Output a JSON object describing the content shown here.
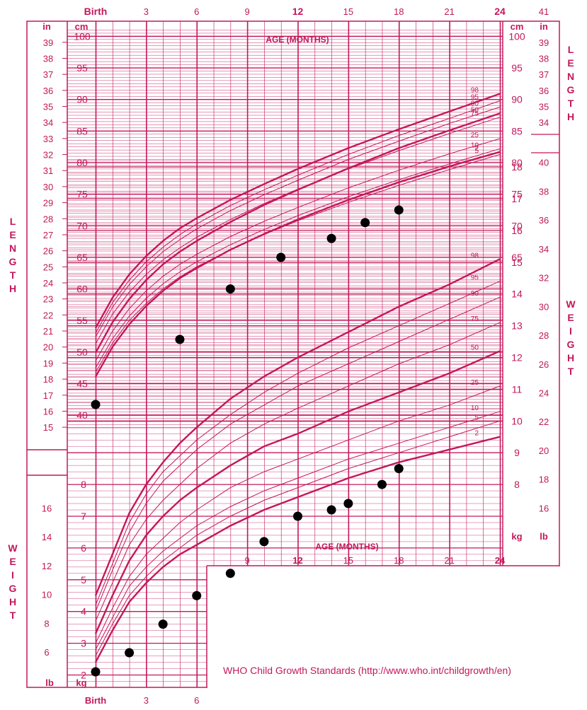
{
  "credit": "WHO Child Growth Standards (http://www.who.int/childgrowth/en)",
  "colors": {
    "ink": "#c2185b",
    "dot": "#000000"
  },
  "chart_data": {
    "type": "line",
    "title": "",
    "x_label_top": "AGE (MONTHS)",
    "x_label_mid": "AGE (MONTHS)",
    "x_ticks_top": [
      "Birth",
      "3",
      "6",
      "9",
      "12",
      "15",
      "18",
      "21",
      "24"
    ],
    "x_ticks_mid": [
      "9",
      "12",
      "15",
      "18",
      "21",
      "24"
    ],
    "x_ticks_bottom": [
      "Birth",
      "3",
      "6"
    ],
    "length_axis": {
      "label": "LENGTH",
      "cm_unit": "cm",
      "in_unit": "in",
      "cm_ticks": [
        40,
        45,
        50,
        55,
        60,
        65,
        70,
        75,
        80,
        85,
        90,
        95,
        100
      ],
      "in_ticks": [
        15,
        16,
        17,
        18,
        19,
        20,
        21,
        22,
        23,
        24,
        25,
        26,
        27,
        28,
        29,
        30,
        31,
        32,
        33,
        34,
        35,
        36,
        37,
        38,
        39
      ],
      "right_cm_ticks": [
        90,
        95,
        100
      ],
      "right_in_ticks": [
        34,
        35,
        36,
        37,
        38,
        39
      ],
      "right_in_top": "41",
      "ylim_cm": [
        38,
        104
      ]
    },
    "weight_axis": {
      "label": "WEIGHT",
      "kg_unit": "kg",
      "lb_unit": "lb",
      "kg_ticks": [
        2,
        3,
        4,
        5,
        6,
        7,
        8,
        9,
        10,
        11,
        12,
        13,
        14,
        15,
        16,
        17,
        18
      ],
      "lb_ticks": [
        6,
        8,
        10,
        12,
        14,
        16,
        18,
        20,
        22,
        24,
        26,
        28,
        30,
        32,
        34,
        36,
        38,
        40
      ],
      "ylim_kg": [
        1.8,
        18.6
      ]
    },
    "length_series": [
      {
        "name": "98",
        "x": [
          0,
          1,
          2,
          3,
          4,
          5,
          6,
          8,
          10,
          12,
          15,
          18,
          21,
          24
        ],
        "y": [
          53.8,
          58.6,
          62.3,
          65.2,
          67.6,
          69.6,
          71.2,
          74.1,
          76.6,
          79.0,
          82.3,
          85.3,
          88.1,
          90.9
        ]
      },
      {
        "name": "95",
        "x": [
          0,
          1,
          2,
          3,
          4,
          5,
          6,
          8,
          10,
          12,
          15,
          18,
          21,
          24
        ],
        "y": [
          53.0,
          57.8,
          61.4,
          64.3,
          66.6,
          68.6,
          70.3,
          73.2,
          75.7,
          78.0,
          81.3,
          84.3,
          87.0,
          89.8
        ]
      },
      {
        "name": "90",
        "x": [
          0,
          1,
          2,
          3,
          4,
          5,
          6,
          8,
          10,
          12,
          15,
          18,
          21,
          24
        ],
        "y": [
          52.4,
          57.1,
          60.7,
          63.5,
          65.9,
          67.8,
          69.5,
          72.4,
          74.9,
          77.2,
          80.5,
          83.4,
          86.2,
          88.8
        ]
      },
      {
        "name": "75",
        "x": [
          0,
          1,
          2,
          3,
          4,
          5,
          6,
          8,
          10,
          12,
          15,
          18,
          21,
          24
        ],
        "y": [
          51.3,
          56.0,
          59.5,
          62.3,
          64.6,
          66.5,
          68.2,
          71.0,
          73.5,
          75.8,
          79.0,
          81.9,
          84.6,
          87.2
        ]
      },
      {
        "name": "50",
        "x": [
          0,
          1,
          2,
          3,
          4,
          5,
          6,
          8,
          10,
          12,
          15,
          18,
          21,
          24
        ],
        "y": [
          49.9,
          54.7,
          58.4,
          61.4,
          63.9,
          65.9,
          67.6,
          70.6,
          73.3,
          75.7,
          79.1,
          82.3,
          85.1,
          87.8
        ]
      },
      {
        "name": "25",
        "x": [
          0,
          1,
          2,
          3,
          4,
          5,
          6,
          8,
          10,
          12,
          15,
          18,
          21,
          24
        ],
        "y": [
          48.6,
          53.3,
          56.9,
          59.7,
          62.0,
          63.9,
          65.5,
          68.3,
          70.7,
          72.9,
          76.0,
          78.8,
          81.4,
          83.8
        ]
      },
      {
        "name": "10",
        "x": [
          0,
          1,
          2,
          3,
          4,
          5,
          6,
          8,
          10,
          12,
          15,
          18,
          21,
          24
        ],
        "y": [
          47.5,
          52.1,
          55.7,
          58.5,
          60.8,
          62.7,
          64.3,
          67.0,
          69.4,
          71.6,
          74.6,
          77.3,
          79.8,
          82.2
        ]
      },
      {
        "name": "5",
        "x": [
          0,
          1,
          2,
          3,
          4,
          5,
          6,
          8,
          10,
          12,
          15,
          18,
          21,
          24
        ],
        "y": [
          46.8,
          51.4,
          55.0,
          57.7,
          60.0,
          61.9,
          63.5,
          66.2,
          68.6,
          70.8,
          73.7,
          76.4,
          78.9,
          81.3
        ]
      },
      {
        "name": "2",
        "x": [
          0,
          1,
          2,
          3,
          4,
          5,
          6,
          8,
          10,
          12,
          15,
          18,
          21,
          24
        ],
        "y": [
          46.1,
          50.8,
          54.4,
          57.3,
          59.7,
          61.7,
          63.3,
          66.2,
          68.7,
          71.0,
          74.1,
          76.9,
          79.4,
          81.7
        ]
      }
    ],
    "weight_series": [
      {
        "name": "98",
        "x": [
          0,
          1,
          2,
          3,
          4,
          5,
          6,
          8,
          10,
          12,
          15,
          18,
          21,
          24
        ],
        "y": [
          4.5,
          5.8,
          7.1,
          8.0,
          8.7,
          9.3,
          9.8,
          10.7,
          11.4,
          12.0,
          12.8,
          13.6,
          14.3,
          15.1
        ]
      },
      {
        "name": "95",
        "x": [
          0,
          1,
          2,
          3,
          4,
          5,
          6,
          8,
          10,
          12,
          15,
          18,
          21,
          24
        ],
        "y": [
          4.2,
          5.5,
          6.8,
          7.7,
          8.4,
          8.9,
          9.4,
          10.2,
          10.9,
          11.5,
          12.3,
          13.0,
          13.7,
          14.4
        ]
      },
      {
        "name": "90",
        "x": [
          0,
          1,
          2,
          3,
          4,
          5,
          6,
          8,
          10,
          12,
          15,
          18,
          21,
          24
        ],
        "y": [
          4.0,
          5.3,
          6.5,
          7.4,
          8.1,
          8.6,
          9.1,
          9.9,
          10.5,
          11.1,
          11.8,
          12.5,
          13.2,
          13.9
        ]
      },
      {
        "name": "75",
        "x": [
          0,
          1,
          2,
          3,
          4,
          5,
          6,
          8,
          10,
          12,
          15,
          18,
          21,
          24
        ],
        "y": [
          3.7,
          4.9,
          6.1,
          6.9,
          7.5,
          8.0,
          8.5,
          9.3,
          9.9,
          10.4,
          11.1,
          11.8,
          12.4,
          13.1
        ]
      },
      {
        "name": "50",
        "x": [
          0,
          1,
          2,
          3,
          4,
          5,
          6,
          8,
          10,
          12,
          15,
          18,
          21,
          24
        ],
        "y": [
          3.3,
          4.5,
          5.6,
          6.4,
          7.0,
          7.5,
          7.9,
          8.6,
          9.2,
          9.6,
          10.3,
          10.9,
          11.5,
          12.2
        ]
      },
      {
        "name": "25",
        "x": [
          0,
          1,
          2,
          3,
          4,
          5,
          6,
          8,
          10,
          12,
          15,
          18,
          21,
          24
        ],
        "y": [
          3.0,
          4.1,
          5.1,
          5.8,
          6.3,
          6.8,
          7.2,
          7.9,
          8.4,
          8.8,
          9.4,
          10.0,
          10.5,
          11.1
        ]
      },
      {
        "name": "10",
        "x": [
          0,
          1,
          2,
          3,
          4,
          5,
          6,
          8,
          10,
          12,
          15,
          18,
          21,
          24
        ],
        "y": [
          2.8,
          3.8,
          4.8,
          5.4,
          5.9,
          6.3,
          6.7,
          7.3,
          7.8,
          8.2,
          8.8,
          9.3,
          9.8,
          10.3
        ]
      },
      {
        "name": "5",
        "x": [
          0,
          1,
          2,
          3,
          4,
          5,
          6,
          8,
          10,
          12,
          15,
          18,
          21,
          24
        ],
        "y": [
          2.6,
          3.6,
          4.5,
          5.1,
          5.6,
          6.0,
          6.4,
          7.0,
          7.5,
          7.9,
          8.5,
          9.0,
          9.5,
          10.0
        ]
      },
      {
        "name": "2",
        "x": [
          0,
          1,
          2,
          3,
          4,
          5,
          6,
          8,
          10,
          12,
          15,
          18,
          21,
          24
        ],
        "y": [
          2.4,
          3.4,
          4.3,
          4.9,
          5.4,
          5.8,
          6.1,
          6.7,
          7.2,
          7.6,
          8.2,
          8.7,
          9.1,
          9.5
        ]
      }
    ],
    "length_points": {
      "x": [
        0,
        5,
        8,
        11,
        14,
        16,
        18
      ],
      "y": [
        41.7,
        52.0,
        60.0,
        65.0,
        68.0,
        70.5,
        72.5
      ]
    },
    "weight_points": {
      "x": [
        0,
        2,
        4,
        6,
        8,
        10,
        12,
        14,
        15,
        17,
        18
      ],
      "y": [
        2.1,
        2.7,
        3.6,
        4.5,
        5.2,
        6.2,
        7.0,
        7.2,
        7.4,
        8.0,
        8.5
      ]
    },
    "grid": true
  }
}
